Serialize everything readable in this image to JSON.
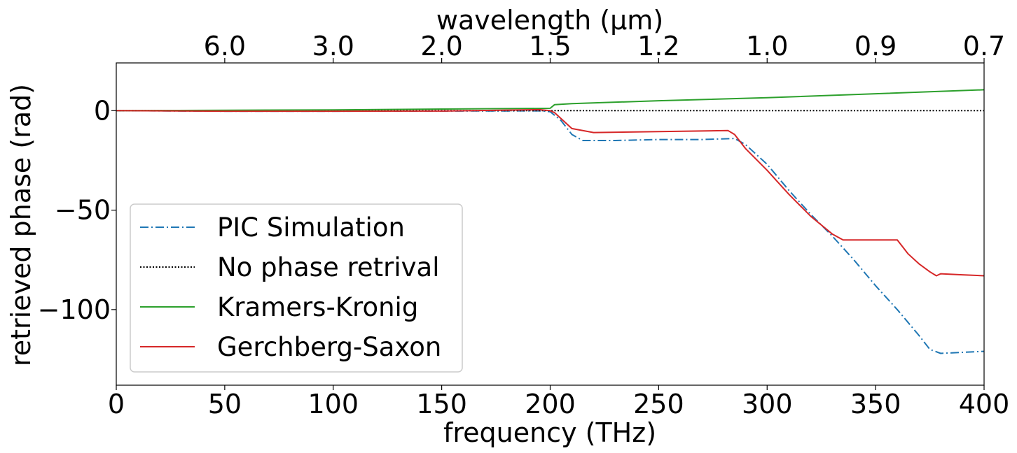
{
  "chart_data": {
    "type": "line",
    "xlabel": "frequency (THz)",
    "ylabel": "retrieved phase (rad)",
    "top_axis_label": "wavelength (μm)",
    "xlim": [
      0,
      400
    ],
    "ylim": [
      -138,
      24
    ],
    "x_ticks": [
      0,
      50,
      100,
      150,
      200,
      250,
      300,
      350,
      400
    ],
    "x_tick_labels": [
      "0",
      "50",
      "100",
      "150",
      "200",
      "250",
      "300",
      "350",
      "400"
    ],
    "y_ticks": [
      0,
      -50,
      -100
    ],
    "y_tick_labels": [
      "0",
      "−50",
      "−100"
    ],
    "top_ticks": [
      {
        "label": "6.0",
        "freq": 50
      },
      {
        "label": "3.0",
        "freq": 100
      },
      {
        "label": "2.0",
        "freq": 150
      },
      {
        "label": "1.5",
        "freq": 200
      },
      {
        "label": "1.2",
        "freq": 250
      },
      {
        "label": "1.0",
        "freq": 300
      },
      {
        "label": "0.9",
        "freq": 350
      },
      {
        "label": "0.7",
        "freq": 400
      }
    ],
    "grid": false,
    "legend_position": "lower-left",
    "series": [
      {
        "name": "PIC Simulation",
        "color": "#1f77b4",
        "style": "dashdot",
        "x": [
          0,
          50,
          100,
          150,
          195,
          200,
          205,
          210,
          215,
          220,
          230,
          250,
          270,
          285,
          290,
          300,
          310,
          320,
          330,
          340,
          350,
          360,
          370,
          375,
          380,
          390,
          400
        ],
        "y": [
          0,
          -0.3,
          -0.3,
          -0.2,
          -0.1,
          -0.5,
          -5,
          -12,
          -15,
          -15,
          -15,
          -14.5,
          -14.5,
          -14,
          -17,
          -27,
          -40,
          -52,
          -63,
          -75,
          -88,
          -100,
          -113,
          -120,
          -122,
          -121.5,
          -121
        ]
      },
      {
        "name": "No phase retrival",
        "color": "#000000",
        "style": "dotted",
        "x": [
          0,
          400
        ],
        "y": [
          0,
          0
        ]
      },
      {
        "name": "Kramers-Kronig",
        "color": "#2ca02c",
        "style": "solid",
        "x": [
          0,
          50,
          100,
          150,
          200,
          202,
          210,
          250,
          300,
          350,
          400
        ],
        "y": [
          0,
          0.2,
          0.4,
          0.8,
          1.2,
          3,
          3.5,
          5,
          6.5,
          8.5,
          10.5
        ]
      },
      {
        "name": "Gerchberg-Saxon",
        "color": "#d62728",
        "style": "solid",
        "x": [
          0,
          50,
          100,
          150,
          195,
          200,
          202,
          210,
          220,
          250,
          282,
          285,
          290,
          300,
          310,
          320,
          330,
          335,
          350,
          360,
          365,
          370,
          375,
          378,
          380,
          390,
          400
        ],
        "y": [
          0,
          -0.3,
          -0.3,
          -0.2,
          0.5,
          0,
          -1,
          -9,
          -11,
          -10.5,
          -10,
          -12,
          -19,
          -30,
          -42,
          -53,
          -62,
          -65,
          -65,
          -65,
          -72,
          -77,
          -81,
          -83,
          -82,
          -82.5,
          -83
        ]
      }
    ]
  }
}
